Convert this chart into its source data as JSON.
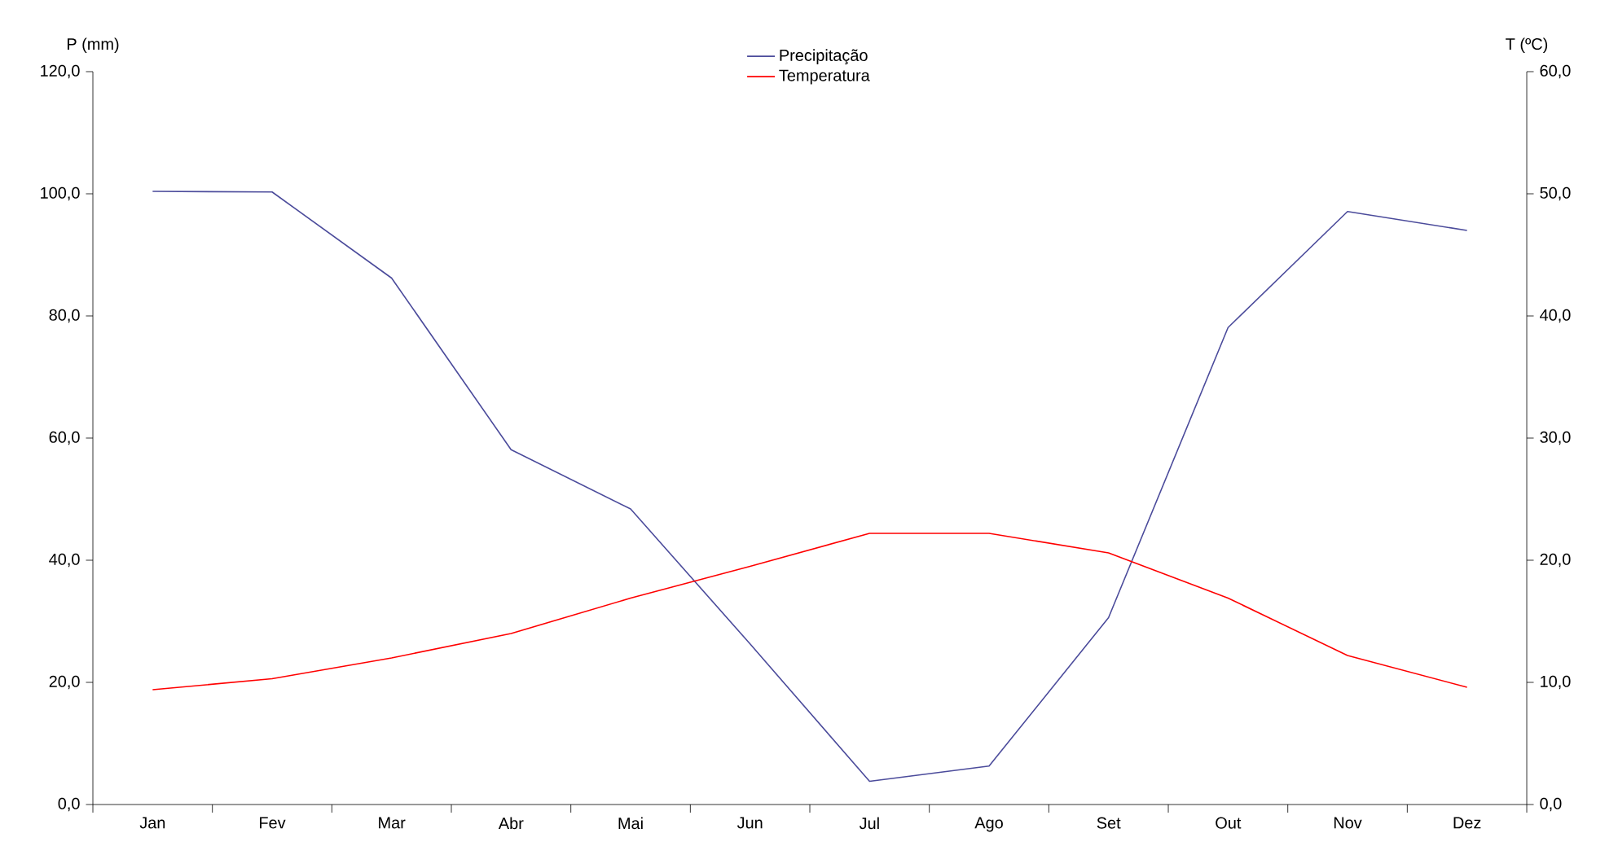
{
  "chart_data": {
    "type": "line",
    "categories": [
      "Jan",
      "Fev",
      "Mar",
      "Abr",
      "Mai",
      "Jun",
      "Jul",
      "Ago",
      "Set",
      "Out",
      "Nov",
      "Dez"
    ],
    "ylabel": "P (mm)",
    "y2label": "T (ºC)",
    "ylim": [
      0,
      120
    ],
    "yticks": [
      {
        "value": 0,
        "label": "0,0"
      },
      {
        "value": 20,
        "label": "20,0"
      },
      {
        "value": 40,
        "label": "40,0"
      },
      {
        "value": 60,
        "label": "60,0"
      },
      {
        "value": 80,
        "label": "80,0"
      },
      {
        "value": 100,
        "label": "100,0"
      },
      {
        "value": 120,
        "label": "120,0"
      }
    ],
    "y2lim": [
      0,
      60
    ],
    "y2ticks": [
      {
        "value": 0,
        "label": "0,0"
      },
      {
        "value": 10,
        "label": "10,0"
      },
      {
        "value": 20,
        "label": "20,0"
      },
      {
        "value": 30,
        "label": "30,0"
      },
      {
        "value": 40,
        "label": "40,0"
      },
      {
        "value": 50,
        "label": "50,0"
      },
      {
        "value": 60,
        "label": "60,0"
      }
    ],
    "legend": "top",
    "grid": false,
    "series": [
      {
        "name": "Precipitação",
        "color": "#4b4b9b",
        "values": [
          100.4,
          100.3,
          86.2,
          58.1,
          48.4,
          26.3,
          3.8,
          6.3,
          30.6,
          78.1,
          97.1,
          94.0
        ]
      },
      {
        "name": "Temperatura",
        "color": "#ff0000",
        "axis": "y2",
        "values": [
          9.4,
          10.3,
          12.0,
          14.0,
          16.9,
          19.5,
          22.2,
          22.2,
          20.6,
          16.9,
          12.2,
          9.6
        ]
      }
    ]
  }
}
